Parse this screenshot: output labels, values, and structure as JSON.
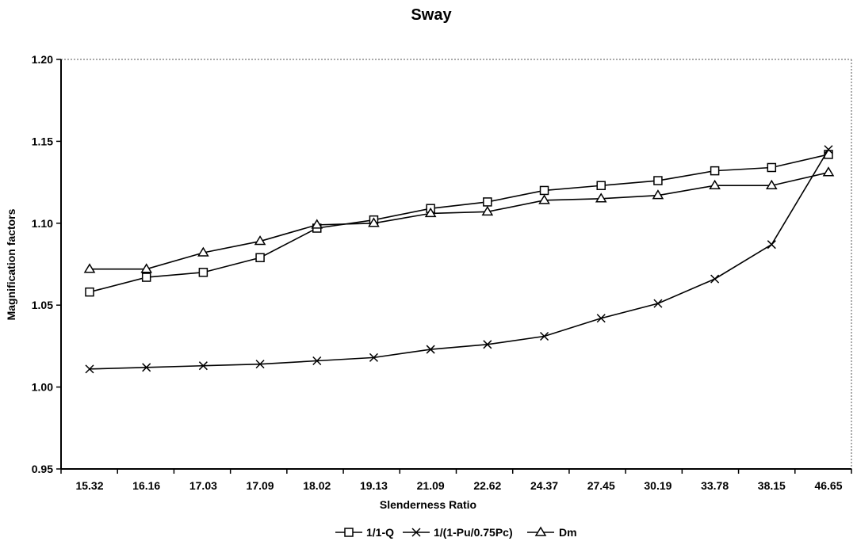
{
  "chart_data": {
    "type": "line",
    "title": "Sway",
    "xlabel": "Slenderness Ratio",
    "ylabel": "Magnification factors",
    "categories": [
      "15.32",
      "16.16",
      "17.03",
      "17.09",
      "18.02",
      "19.13",
      "21.09",
      "22.62",
      "24.37",
      "27.45",
      "30.19",
      "33.78",
      "38.15",
      "46.65"
    ],
    "ylim": [
      0.95,
      1.2
    ],
    "yticks": [
      "0.95",
      "1.00",
      "1.05",
      "1.10",
      "1.15",
      "1.20"
    ],
    "grid": false,
    "legend_position": "bottom",
    "series": [
      {
        "name": "1/1-Q",
        "marker": "square",
        "values": [
          1.058,
          1.067,
          1.07,
          1.079,
          1.097,
          1.102,
          1.109,
          1.113,
          1.12,
          1.123,
          1.126,
          1.132,
          1.134,
          1.142
        ]
      },
      {
        "name": "1/(1-Pu/0.75Pc)",
        "marker": "x",
        "values": [
          1.011,
          1.012,
          1.013,
          1.014,
          1.016,
          1.018,
          1.023,
          1.026,
          1.031,
          1.042,
          1.051,
          1.066,
          1.087,
          1.145
        ]
      },
      {
        "name": "Dm",
        "marker": "triangle",
        "values": [
          1.072,
          1.072,
          1.082,
          1.089,
          1.099,
          1.1,
          1.106,
          1.107,
          1.114,
          1.115,
          1.117,
          1.123,
          1.123,
          1.131
        ]
      }
    ]
  }
}
